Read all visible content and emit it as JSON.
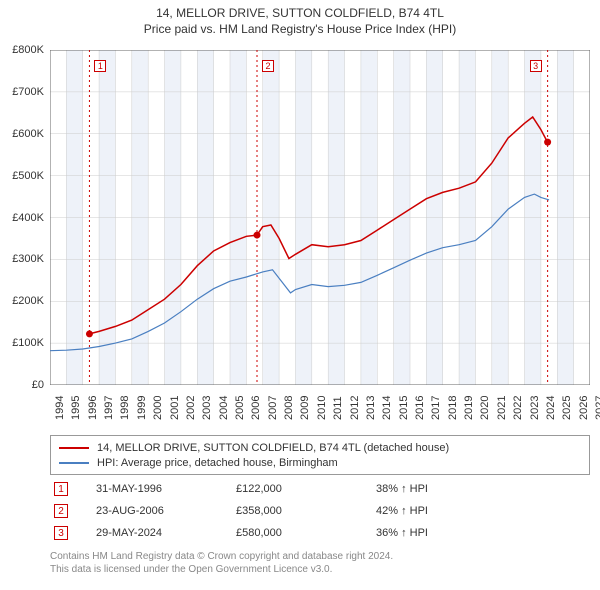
{
  "title": {
    "line1": "14, MELLOR DRIVE, SUTTON COLDFIELD, B74 4TL",
    "line2": "Price paid vs. HM Land Registry's House Price Index (HPI)"
  },
  "chart": {
    "type": "line",
    "background_color": "#ffffff",
    "grid_color": "#cccccc",
    "band_color": "#eef2f9",
    "x": {
      "min": 1994,
      "max": 2027,
      "ticks": [
        1994,
        1995,
        1996,
        1997,
        1998,
        1999,
        2000,
        2001,
        2002,
        2003,
        2004,
        2005,
        2006,
        2007,
        2008,
        2009,
        2010,
        2011,
        2012,
        2013,
        2014,
        2015,
        2016,
        2017,
        2018,
        2019,
        2020,
        2021,
        2022,
        2023,
        2024,
        2025,
        2026,
        2027
      ],
      "fontsize": 11
    },
    "y": {
      "min": 0,
      "max": 800000,
      "ticks": [
        0,
        100000,
        200000,
        300000,
        400000,
        500000,
        600000,
        700000,
        800000
      ],
      "tick_labels": [
        "£0",
        "£100K",
        "£200K",
        "£300K",
        "£400K",
        "£500K",
        "£600K",
        "£700K",
        "£800K"
      ],
      "fontsize": 11
    },
    "series": [
      {
        "name": "14, MELLOR DRIVE, SUTTON COLDFIELD, B74 4TL (detached house)",
        "color": "#cc0000",
        "line_width": 1.5,
        "data": [
          [
            1996.4,
            122000
          ],
          [
            1997,
            128000
          ],
          [
            1998,
            140000
          ],
          [
            1999,
            155000
          ],
          [
            2000,
            180000
          ],
          [
            2001,
            205000
          ],
          [
            2002,
            240000
          ],
          [
            2003,
            285000
          ],
          [
            2004,
            320000
          ],
          [
            2005,
            340000
          ],
          [
            2006,
            355000
          ],
          [
            2006.65,
            358000
          ],
          [
            2007,
            378000
          ],
          [
            2007.5,
            382000
          ],
          [
            2008,
            350000
          ],
          [
            2008.6,
            302000
          ],
          [
            2009,
            312000
          ],
          [
            2010,
            335000
          ],
          [
            2011,
            330000
          ],
          [
            2012,
            335000
          ],
          [
            2013,
            345000
          ],
          [
            2014,
            370000
          ],
          [
            2015,
            395000
          ],
          [
            2016,
            420000
          ],
          [
            2017,
            445000
          ],
          [
            2018,
            460000
          ],
          [
            2019,
            470000
          ],
          [
            2020,
            485000
          ],
          [
            2021,
            530000
          ],
          [
            2022,
            590000
          ],
          [
            2023,
            625000
          ],
          [
            2023.5,
            640000
          ],
          [
            2024,
            610000
          ],
          [
            2024.4,
            580000
          ]
        ]
      },
      {
        "name": "HPI: Average price, detached house, Birmingham",
        "color": "#4a7fc1",
        "line_width": 1.2,
        "data": [
          [
            1994,
            82000
          ],
          [
            1995,
            83000
          ],
          [
            1996,
            86000
          ],
          [
            1997,
            92000
          ],
          [
            1998,
            100000
          ],
          [
            1999,
            110000
          ],
          [
            2000,
            128000
          ],
          [
            2001,
            148000
          ],
          [
            2002,
            175000
          ],
          [
            2003,
            205000
          ],
          [
            2004,
            230000
          ],
          [
            2005,
            248000
          ],
          [
            2006,
            258000
          ],
          [
            2007,
            270000
          ],
          [
            2007.6,
            275000
          ],
          [
            2008,
            255000
          ],
          [
            2008.7,
            220000
          ],
          [
            2009,
            228000
          ],
          [
            2010,
            240000
          ],
          [
            2011,
            235000
          ],
          [
            2012,
            238000
          ],
          [
            2013,
            245000
          ],
          [
            2014,
            262000
          ],
          [
            2015,
            280000
          ],
          [
            2016,
            298000
          ],
          [
            2017,
            315000
          ],
          [
            2018,
            328000
          ],
          [
            2019,
            335000
          ],
          [
            2020,
            345000
          ],
          [
            2021,
            378000
          ],
          [
            2022,
            420000
          ],
          [
            2023,
            448000
          ],
          [
            2023.6,
            456000
          ],
          [
            2024,
            448000
          ],
          [
            2024.5,
            442000
          ]
        ]
      }
    ],
    "sale_points": [
      {
        "n": "1",
        "year": 1996.41,
        "value": 122000
      },
      {
        "n": "2",
        "year": 2006.65,
        "value": 358000
      },
      {
        "n": "3",
        "year": 2024.41,
        "value": 580000
      }
    ],
    "marker_color": "#cc0000",
    "marker_radius": 3.5
  },
  "legend": {
    "items": [
      {
        "color": "#cc0000",
        "label": "14, MELLOR DRIVE, SUTTON COLDFIELD, B74 4TL (detached house)"
      },
      {
        "color": "#4a7fc1",
        "label": "HPI: Average price, detached house, Birmingham"
      }
    ]
  },
  "sales": [
    {
      "n": "1",
      "date": "31-MAY-1996",
      "price": "£122,000",
      "pct": "38% ↑ HPI"
    },
    {
      "n": "2",
      "date": "23-AUG-2006",
      "price": "£358,000",
      "pct": "42% ↑ HPI"
    },
    {
      "n": "3",
      "date": "29-MAY-2024",
      "price": "£580,000",
      "pct": "36% ↑ HPI"
    }
  ],
  "footer": {
    "line1": "Contains HM Land Registry data © Crown copyright and database right 2024.",
    "line2": "This data is licensed under the Open Government Licence v3.0."
  }
}
